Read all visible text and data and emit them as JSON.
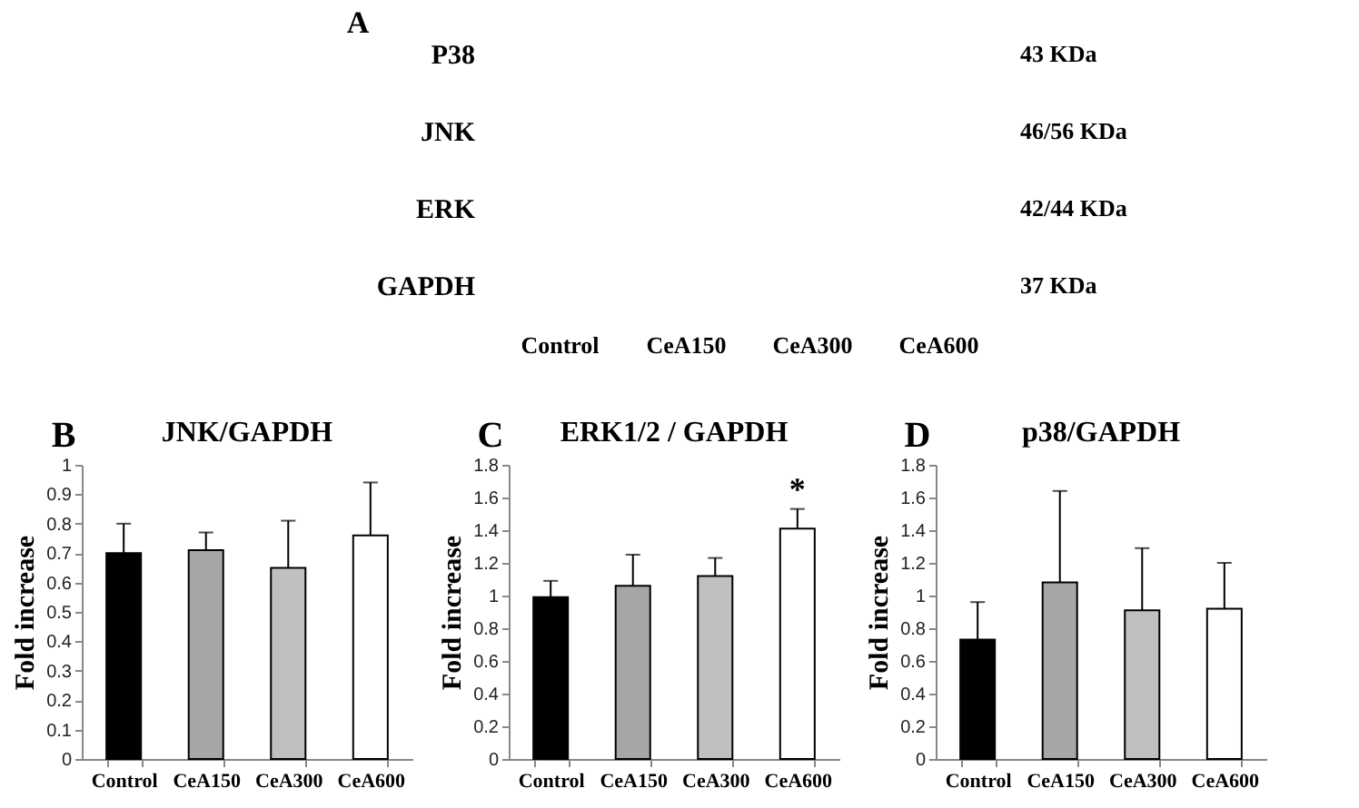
{
  "chart_data": [
    {
      "type": "other",
      "title": "A",
      "categories": [
        "Control",
        "CeA150",
        "CeA300",
        "CeA600"
      ],
      "y_categories": [
        "P38",
        "JNK",
        "ERK",
        "GAPDH"
      ],
      "y2_categories": [
        "43 KDa",
        "46/56 KDa",
        "42/44 KDa",
        "37 KDa"
      ]
    },
    {
      "type": "bar",
      "title": "JNK/GAPDH",
      "annotations": [
        "B"
      ],
      "ylabel": "Fold increase",
      "categories": [
        "Control",
        "CeA150",
        "CeA300",
        "CeA600"
      ],
      "values": [
        0.7,
        0.71,
        0.65,
        0.76
      ],
      "errors": [
        [
          0.7,
          0.8
        ],
        [
          0.71,
          0.77
        ],
        [
          0.65,
          0.81
        ],
        [
          0.76,
          0.94
        ]
      ],
      "colors": [
        "#000000",
        "#a6a6a6",
        "#c0c0c0",
        "#ffffff"
      ],
      "ylim": [
        0,
        1
      ],
      "yticks": [
        0,
        0.1,
        0.2,
        0.3,
        0.4,
        0.5,
        0.6,
        0.7,
        0.8,
        0.9,
        1
      ]
    },
    {
      "type": "bar",
      "title": "ERK1/2 / GAPDH",
      "annotations": [
        "C",
        {
          "text": "*",
          "x": "CeA600",
          "y": 1.53
        }
      ],
      "ylabel": "Fold increase",
      "categories": [
        "Control",
        "CeA150",
        "CeA300",
        "CeA600"
      ],
      "values": [
        0.99,
        1.06,
        1.12,
        1.41
      ],
      "errors": [
        [
          0.99,
          1.09
        ],
        [
          1.06,
          1.25
        ],
        [
          1.12,
          1.23
        ],
        [
          1.41,
          1.53
        ]
      ],
      "colors": [
        "#000000",
        "#a6a6a6",
        "#c0c0c0",
        "#ffffff"
      ],
      "ylim": [
        0,
        1.8
      ],
      "yticks": [
        0,
        0.2,
        0.4,
        0.6,
        0.8,
        1,
        1.2,
        1.4,
        1.6,
        1.8
      ]
    },
    {
      "type": "bar",
      "title": "p38/GAPDH",
      "annotations": [
        "D"
      ],
      "ylabel": "Fold increase",
      "categories": [
        "Control",
        "CeA150",
        "CeA300",
        "CeA600"
      ],
      "values": [
        0.73,
        1.08,
        0.91,
        0.92
      ],
      "errors": [
        [
          0.73,
          0.96
        ],
        [
          1.08,
          1.64
        ],
        [
          0.91,
          1.29
        ],
        [
          0.92,
          1.2
        ]
      ],
      "colors": [
        "#000000",
        "#a6a6a6",
        "#c0c0c0",
        "#ffffff"
      ],
      "ylim": [
        0,
        1.8
      ],
      "yticks": [
        0,
        0.2,
        0.4,
        0.6,
        0.8,
        1,
        1.2,
        1.4,
        1.6,
        1.8
      ]
    }
  ]
}
